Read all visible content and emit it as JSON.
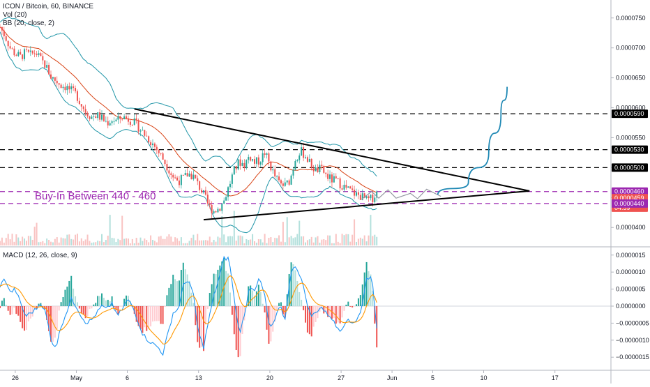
{
  "legend": {
    "symbol_line": "ICON / Bitcoin, 60, BINANCE",
    "vol_line": "Vol (20)",
    "bb_line": "BB (20, close, 2)",
    "macd_line": "MACD (12, 26, close, 9)"
  },
  "annotation": "Buy-In Between 440 - 460",
  "colors": {
    "up": "#26a69a",
    "down": "#ef5350",
    "bb": "#2196a8",
    "basis": "#d84315",
    "macd": "#2196f3",
    "signal": "#ff9800",
    "purple": "#9c27b0",
    "black": "#000000",
    "projection": "#1e88b4"
  },
  "chart_data": [
    {
      "type": "line",
      "title": "ICON / Bitcoin, 60, BINANCE",
      "ylim": [
        3.7e-05,
        7.8e-05
      ],
      "y_ticks": [
        "0.0000400",
        "0.0000450",
        "0.0000500",
        "0.0000550",
        "0.0000600",
        "0.0000650",
        "0.0000700",
        "0.0000750"
      ],
      "x_ticks": [
        "26",
        "May",
        "6",
        "13",
        "20",
        "27",
        "Jun",
        "5",
        "10",
        "17"
      ],
      "x_tick_days": [
        -5,
        1,
        6,
        13,
        20,
        27,
        32,
        36,
        41,
        48
      ],
      "xlim": [
        -6.5,
        53.5
      ],
      "price_tags": [
        {
          "label": "0.0000590",
          "value": 5.9e-05,
          "color": "#000000"
        },
        {
          "label": "0.0000530",
          "value": 5.3e-05,
          "color": "#000000"
        },
        {
          "label": "0.0000500",
          "value": 5e-05,
          "color": "#000000"
        },
        {
          "label": "0.0000460",
          "value": 4.6e-05,
          "color": "#9c27b0"
        },
        {
          "label": "0.0000459",
          "value": 4.49e-05,
          "color": "#ef5350"
        },
        {
          "label": "04:59",
          "value": 4.33e-05,
          "color": "#ef5350"
        },
        {
          "label": "0.0000440",
          "value": 4.4e-05,
          "color": "#9c27b0"
        }
      ],
      "horizontal_lines": [
        {
          "value": 5.9e-05,
          "color": "#000000"
        },
        {
          "value": 5.3e-05,
          "color": "#000000"
        },
        {
          "value": 5e-05,
          "color": "#000000"
        },
        {
          "value": 4.6e-05,
          "color": "#9c27b0"
        },
        {
          "value": 4.4e-05,
          "color": "#9c27b0"
        }
      ],
      "triangle_upper": [
        [
          6.7,
          5.98e-05
        ],
        [
          45.5,
          4.61e-05
        ]
      ],
      "triangle_lower": [
        [
          13.5,
          4.13e-05
        ],
        [
          45.5,
          4.61e-05
        ]
      ],
      "projection_zigzag": [
        [
          29.0,
          4.47e-05
        ],
        [
          30.0,
          4.6e-05
        ],
        [
          30.7,
          4.49e-05
        ],
        [
          31.6,
          4.63e-05
        ],
        [
          32.4,
          4.49e-05
        ],
        [
          33.8,
          4.57e-05
        ],
        [
          34.5,
          4.48e-05
        ],
        [
          35.4,
          4.64e-05
        ],
        [
          36.8,
          4.52e-05
        ]
      ],
      "projection_curve": [
        [
          36.5,
          4.55e-05
        ],
        [
          39.5,
          4.75e-05
        ],
        [
          41.5,
          5.25e-05
        ],
        [
          42.7,
          5.9e-05
        ],
        [
          43.3,
          6.35e-05
        ]
      ],
      "series": [
        {
          "name": "",
          "x": [
            -6.5,
            -6.0,
            -5.5,
            -5.0,
            -4.5,
            -4.0,
            -3.5,
            -3.0,
            -2.5,
            -2.0,
            -1.5,
            -1.0,
            -0.5,
            0.0,
            0.5,
            1.0,
            1.5,
            2.0,
            2.5,
            3.0,
            3.5,
            4.0,
            4.5,
            5.0,
            5.5,
            6.0,
            6.5,
            7.0,
            7.5,
            8.0,
            8.5,
            9.0,
            9.5,
            10.0,
            10.5,
            11.0,
            11.5,
            12.0,
            12.5,
            13.0,
            13.5,
            14.0,
            14.5,
            15.0,
            15.5,
            16.0,
            16.5,
            17.0,
            17.5,
            18.0,
            18.5,
            19.0,
            19.5,
            20.0,
            20.5,
            21.0,
            21.5,
            22.0,
            22.5,
            23.0,
            23.5,
            24.0,
            24.5,
            25.0,
            25.5,
            26.0,
            26.5,
            27.0,
            27.5,
            28.0,
            28.5,
            29.0,
            29.5,
            30.0,
            30.5
          ],
          "values": [
            7.35e-05,
            7.2e-05,
            7e-05,
            6.9e-05,
            6.85e-05,
            6.92e-05,
            6.88e-05,
            6.93e-05,
            6.8e-05,
            6.7e-05,
            6.52e-05,
            6.45e-05,
            6.38e-05,
            6.35e-05,
            6.28e-05,
            6.22e-05,
            6.05e-05,
            5.92e-05,
            5.85e-05,
            5.88e-05,
            5.82e-05,
            5.75e-05,
            5.8e-05,
            5.78e-05,
            5.85e-05,
            5.82e-05,
            5.78e-05,
            5.7e-05,
            5.6e-05,
            5.5e-05,
            5.4e-05,
            5.28e-05,
            5.15e-05,
            5e-05,
            4.85e-05,
            4.78e-05,
            4.82e-05,
            4.9e-05,
            4.85e-05,
            4.7e-05,
            4.55e-05,
            4.35e-05,
            4.28e-05,
            4.32e-05,
            4.45e-05,
            4.7e-05,
            4.95e-05,
            5.1e-05,
            5.05e-05,
            5.2e-05,
            5.08e-05,
            5.12e-05,
            5.25e-05,
            5.05e-05,
            4.85e-05,
            4.72e-05,
            4.7e-05,
            4.8e-05,
            5.15e-05,
            5.28e-05,
            5.2e-05,
            5.05e-05,
            4.95e-05,
            4.98e-05,
            4.88e-05,
            4.8e-05,
            4.78e-05,
            4.72e-05,
            4.65e-05,
            4.6e-05,
            4.55e-05,
            4.52e-05,
            4.45e-05,
            4.48e-05,
            4.58e-05
          ]
        }
      ]
    },
    {
      "type": "line",
      "title": "MACD (12, 26, close, 9)",
      "ylim": [
        -1.7e-06,
        1.7e-06
      ],
      "y_ticks": [
        "0.0000015",
        "0.0000010",
        "0.0000005",
        "0.0000000",
        "−0.0000005",
        "−0.0000010",
        "−0.0000015"
      ],
      "xlim": [
        -6.5,
        53.5
      ],
      "series": [
        {
          "name": "",
          "x": [
            -6.5,
            -6.0,
            -5.5,
            -5.0,
            -4.5,
            -4.0,
            -3.5,
            -3.0,
            -2.5,
            -2.0,
            -1.5,
            -1.0,
            -0.5,
            0.0,
            0.5,
            1.0,
            1.5,
            2.0,
            2.5,
            3.0,
            3.5,
            4.0,
            4.5,
            5.0,
            5.5,
            6.0,
            6.5,
            7.0,
            7.5,
            8.0,
            8.5,
            9.0,
            9.5,
            10.0,
            10.5,
            11.0,
            11.5,
            12.0,
            12.5,
            13.0,
            13.5,
            14.0,
            14.5,
            15.0,
            15.5,
            16.0,
            16.5,
            17.0,
            17.5,
            18.0,
            18.5,
            19.0,
            19.5,
            20.0,
            20.5,
            21.0,
            21.5,
            22.0,
            22.5,
            23.0,
            23.5,
            24.0,
            24.5,
            25.0,
            25.5,
            26.0,
            26.5,
            27.0,
            27.5,
            28.0,
            28.5,
            29.0,
            29.5,
            30.0,
            30.5
          ],
          "values": [
            6e-07,
            8e-07,
            4e-07,
            5e-07,
            1e-07,
            -3e-07,
            -2e-07,
            -1e-07,
            1e-07,
            -2e-07,
            -1e-06,
            -1.2e-06,
            -6e-07,
            -2e-07,
            2e-07,
            0.0,
            -3e-07,
            -5e-07,
            -4e-07,
            -2e-07,
            0.0,
            -1e-07,
            1e-07,
            -3e-07,
            -1e-07,
            2e-07,
            0.0,
            -4e-07,
            -8e-07,
            -1e-06,
            -1.1e-06,
            -1.2e-06,
            -1.4e-06,
            -8e-07,
            -2e-07,
            -1e-07,
            6e-07,
            8e-07,
            3e-07,
            -8e-07,
            -1.2e-06,
            -4e-07,
            3e-07,
            8e-07,
            1.4e-06,
            1.4e-06,
            2e-07,
            -8e-07,
            -3e-07,
            6e-07,
            5e-07,
            8e-07,
            3e-07,
            -7e-07,
            -4e-07,
            0.0,
            -4e-07,
            9e-07,
            1.2e-06,
            9e-07,
            3e-07,
            -3e-07,
            -2e-07,
            0.0,
            -2e-07,
            -3e-07,
            -6e-07,
            -7e-07,
            -4e-07,
            -5e-07,
            -4e-07,
            -1e-07,
            8e-07,
            9e-07,
            -6e-07
          ]
        }
      ]
    }
  ]
}
